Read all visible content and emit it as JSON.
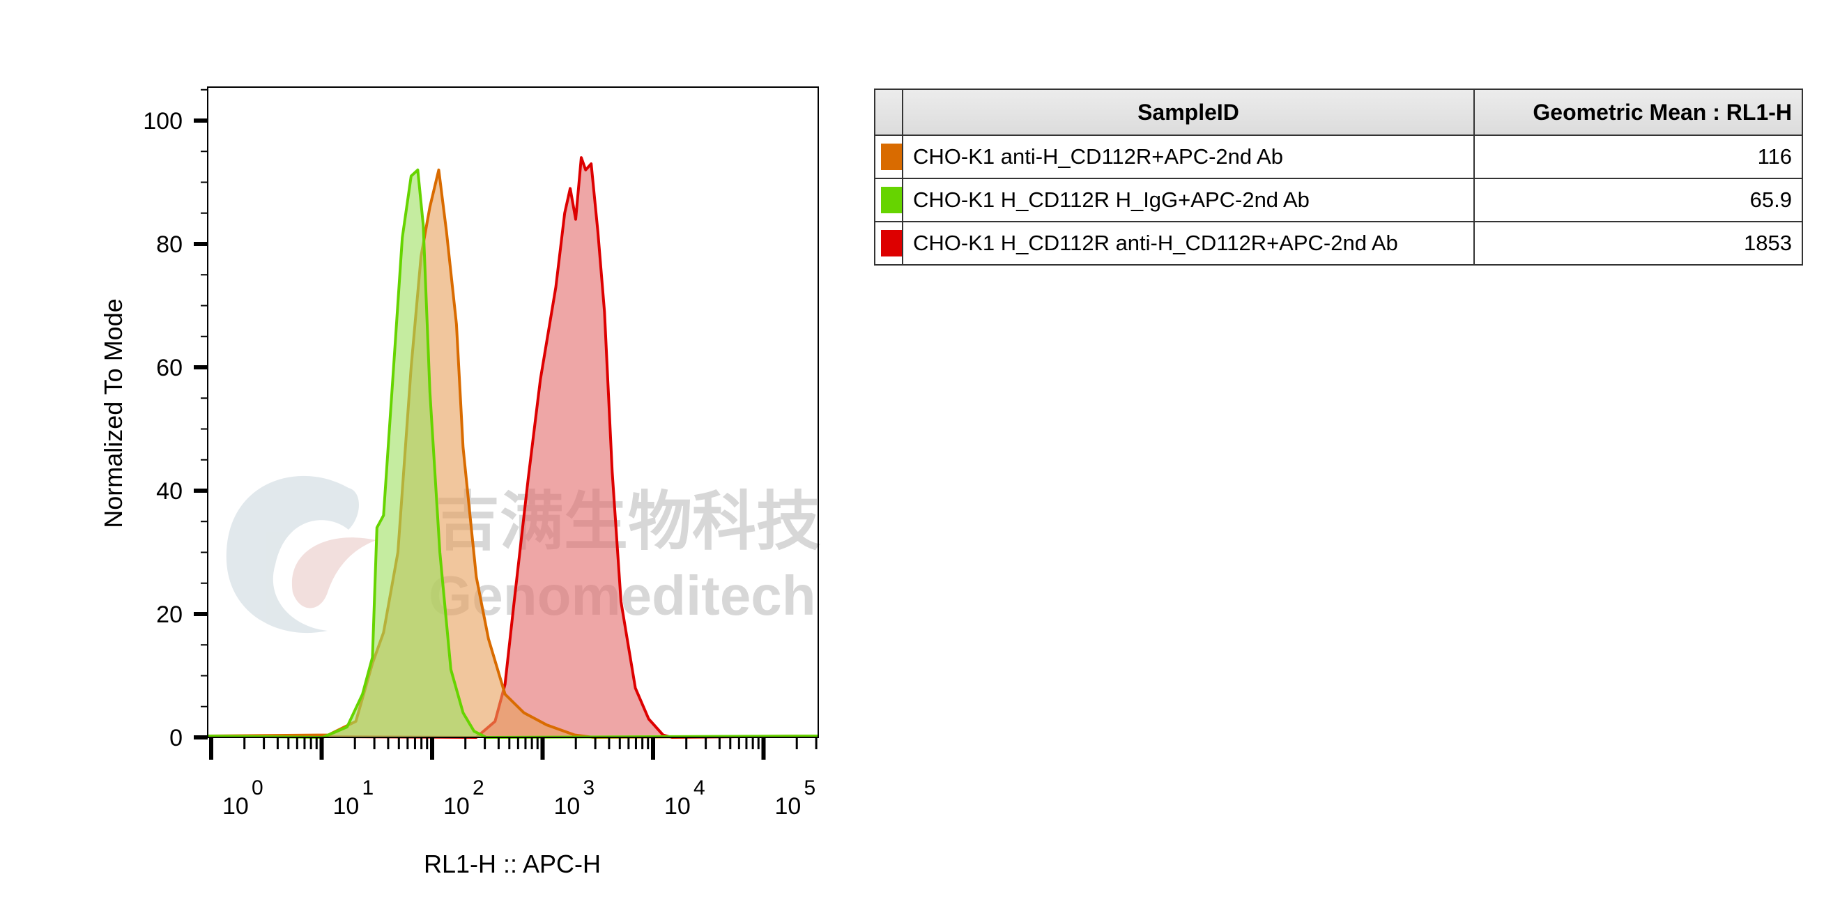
{
  "chart_data": {
    "type": "area",
    "title": "",
    "xlabel": "RL1-H :: APC-H",
    "ylabel": "Normalized To Mode",
    "x_scale": "log10",
    "xlim_log10": [
      0,
      5.45
    ],
    "ylim": [
      0,
      100
    ],
    "x_tick_labels": [
      {
        "base": "10",
        "exp": "0",
        "log": 0
      },
      {
        "base": "10",
        "exp": "1",
        "log": 1
      },
      {
        "base": "10",
        "exp": "2",
        "log": 2
      },
      {
        "base": "10",
        "exp": "3",
        "log": 3
      },
      {
        "base": "10",
        "exp": "4",
        "log": 4
      },
      {
        "base": "10",
        "exp": "5",
        "log": 5
      }
    ],
    "y_tick_labels": [
      "0",
      "20",
      "40",
      "60",
      "80",
      "100"
    ],
    "y_ticks": [
      0,
      20,
      40,
      60,
      80,
      100
    ],
    "series": [
      {
        "name": "CHO-K1 anti-H_CD112R+APC-2nd Ab",
        "color": "#d96b00",
        "fill": "#e8a05c",
        "points_log10x_y": [
          [
            1.06,
            0.4
          ],
          [
            1.31,
            2.6
          ],
          [
            1.46,
            12
          ],
          [
            1.56,
            17
          ],
          [
            1.69,
            30
          ],
          [
            1.81,
            60
          ],
          [
            1.9,
            78
          ],
          [
            1.98,
            86
          ],
          [
            2.06,
            92
          ],
          [
            2.13,
            82
          ],
          [
            2.22,
            67
          ],
          [
            2.28,
            47
          ],
          [
            2.4,
            26
          ],
          [
            2.51,
            16
          ],
          [
            2.66,
            7
          ],
          [
            2.83,
            4
          ],
          [
            3.04,
            2
          ],
          [
            3.29,
            0.4
          ],
          [
            3.46,
            0
          ]
        ]
      },
      {
        "name": "CHO-K1 H_CD112R H_IgG+APC-2nd Ab",
        "color": "#66d400",
        "fill": "#9fe060",
        "points_log10x_y": [
          [
            1.01,
            0
          ],
          [
            1.23,
            1.7
          ],
          [
            1.37,
            7
          ],
          [
            1.46,
            13
          ],
          [
            1.5,
            34
          ],
          [
            1.56,
            36
          ],
          [
            1.67,
            65
          ],
          [
            1.73,
            81
          ],
          [
            1.81,
            91
          ],
          [
            1.87,
            92
          ],
          [
            1.92,
            83
          ],
          [
            1.98,
            56
          ],
          [
            2.07,
            30
          ],
          [
            2.17,
            11
          ],
          [
            2.28,
            4
          ],
          [
            2.38,
            1
          ],
          [
            2.49,
            0
          ]
        ]
      },
      {
        "name": "CHO-K1 H_CD112R anti-H_CD112R+APC-2nd Ab",
        "color": "#dd0000",
        "fill": "#e26a6a",
        "points_log10x_y": [
          [
            2.4,
            0
          ],
          [
            2.57,
            2.6
          ],
          [
            2.66,
            8.6
          ],
          [
            2.74,
            21.6
          ],
          [
            2.87,
            42
          ],
          [
            2.98,
            58
          ],
          [
            3.12,
            73
          ],
          [
            3.2,
            85
          ],
          [
            3.25,
            89
          ],
          [
            3.3,
            84
          ],
          [
            3.35,
            94
          ],
          [
            3.39,
            92
          ],
          [
            3.44,
            93
          ],
          [
            3.5,
            82
          ],
          [
            3.56,
            69
          ],
          [
            3.63,
            43
          ],
          [
            3.71,
            22
          ],
          [
            3.84,
            8
          ],
          [
            3.96,
            3
          ],
          [
            4.09,
            0.4
          ],
          [
            4.17,
            0
          ]
        ]
      }
    ]
  },
  "table": {
    "headers": [
      "",
      "SampleID",
      "Geometric Mean : RL1-H"
    ],
    "rows": [
      {
        "color": "#d96b00",
        "sample": "CHO-K1 anti-H_CD112R+APC-2nd Ab",
        "value": "116"
      },
      {
        "color": "#66d400",
        "sample": "CHO-K1 H_CD112R H_IgG+APC-2nd Ab",
        "value": "65.9"
      },
      {
        "color": "#dd0000",
        "sample": "CHO-K1 H_CD112R anti-H_CD112R+APC-2nd Ab",
        "value": "1853"
      }
    ]
  },
  "watermark": {
    "cn": "吉满生物科技",
    "en": "Genomeditech"
  }
}
